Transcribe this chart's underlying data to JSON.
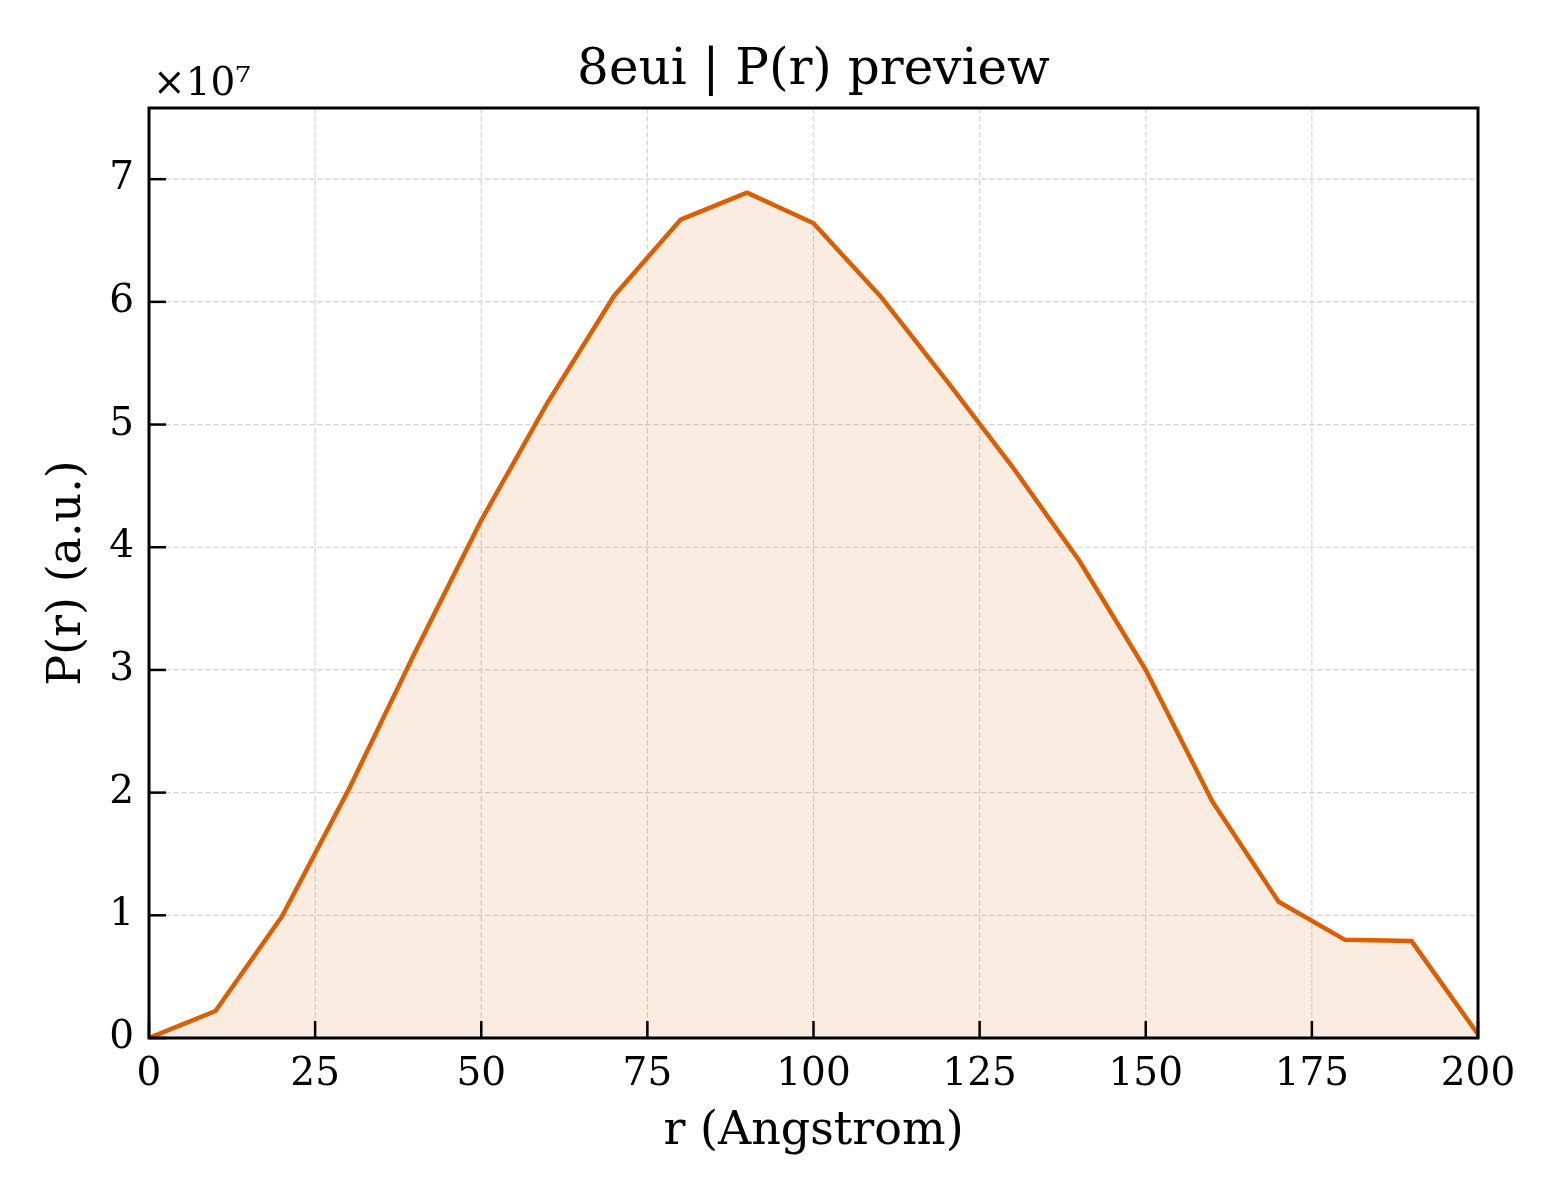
{
  "chart_data": {
    "type": "area",
    "title": "8eui | P(r) preview",
    "xlabel": "r (Angstrom)",
    "ylabel": "P(r) (a.u.)",
    "x": [
      0,
      10,
      20,
      30,
      40,
      50,
      60,
      70,
      80,
      90,
      100,
      110,
      120,
      130,
      140,
      150,
      160,
      170,
      180,
      190,
      200
    ],
    "values": [
      0,
      0.22,
      0.99,
      2.02,
      3.14,
      4.22,
      5.18,
      6.05,
      6.67,
      6.89,
      6.64,
      6.05,
      5.36,
      4.65,
      3.89,
      3.0,
      1.93,
      1.11,
      0.8,
      0.79,
      0.03
    ],
    "color": "#d95f02",
    "xlim": [
      0,
      200
    ],
    "xticks": [
      0,
      25,
      50,
      75,
      100,
      125,
      150,
      175,
      200
    ],
    "ylim": [
      0,
      7.58
    ],
    "yticks": [
      0,
      1,
      2,
      3,
      4,
      5,
      6,
      7
    ],
    "annotations": [
      "×10⁷"
    ],
    "grid": true
  }
}
